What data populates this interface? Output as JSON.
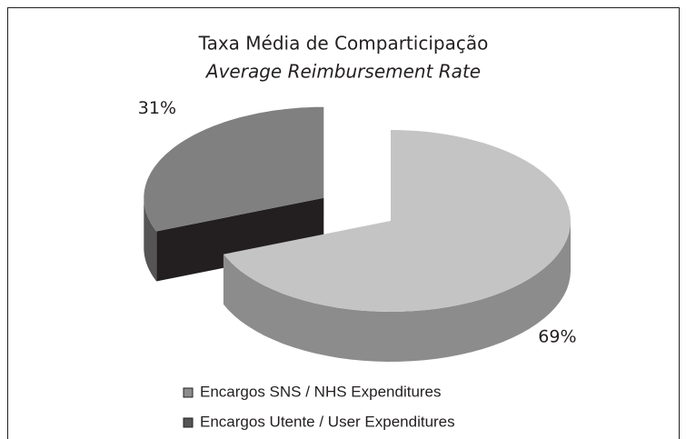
{
  "chart_data": {
    "type": "pie3d",
    "title": "Taxa Média de Comparticipação",
    "subtitle": "Average Reimbursement Rate",
    "categories": [
      "Encargos SNS / NHS Expenditures",
      "Encargos Utente / User Expenditures"
    ],
    "values": [
      69,
      31
    ],
    "value_labels": [
      "69%",
      "31%"
    ],
    "colors": [
      "#c4c4c4",
      "#808080"
    ],
    "side_colors": [
      "#8c8c8c",
      "#555555"
    ],
    "cut_colors": [
      "#6e6e6e",
      "#231f20"
    ],
    "legend": "bottom"
  }
}
